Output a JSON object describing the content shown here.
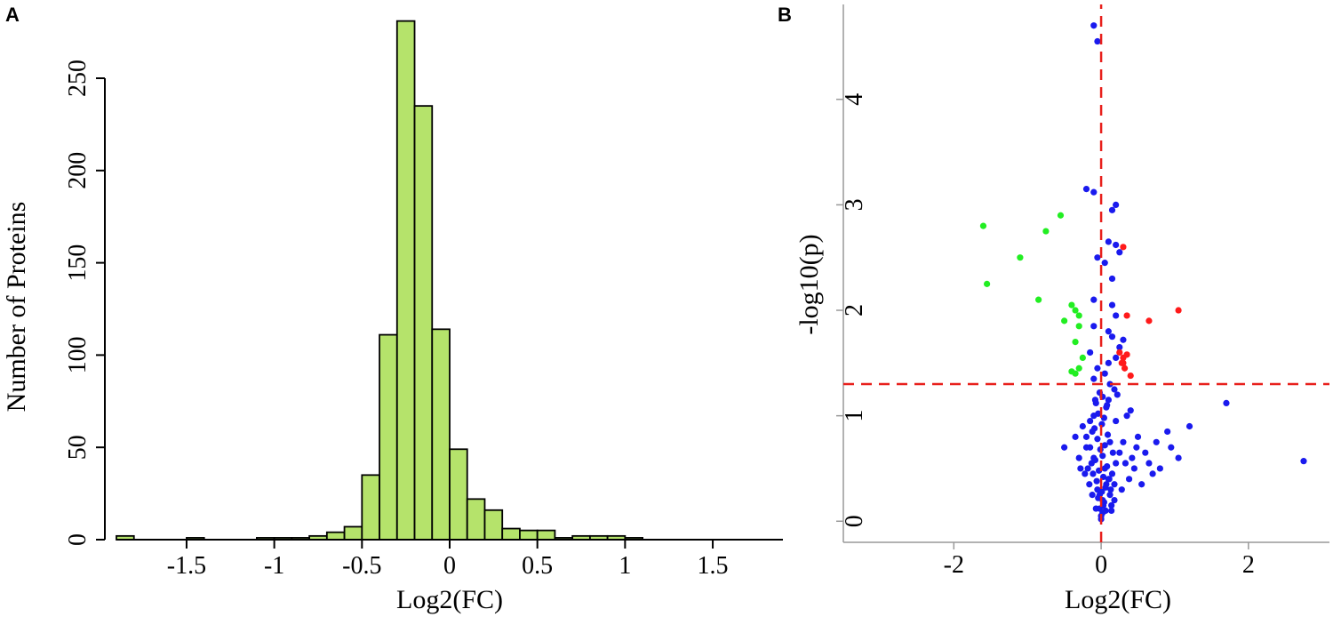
{
  "panels": {
    "a_label": "A",
    "b_label": "B"
  },
  "chart_data": [
    {
      "type": "bar",
      "panel": "A",
      "xlabel": "Log2(FC)",
      "ylabel": "Number of Proteins",
      "bin_width": 0.1,
      "bin_starts": [
        -1.9,
        -1.8,
        -1.7,
        -1.6,
        -1.5,
        -1.4,
        -1.3,
        -1.2,
        -1.1,
        -1.0,
        -0.9,
        -0.8,
        -0.7,
        -0.6,
        -0.5,
        -0.4,
        -0.3,
        -0.2,
        -0.1,
        0.0,
        0.1,
        0.2,
        0.3,
        0.4,
        0.5,
        0.6,
        0.7,
        0.8,
        0.9,
        1.0,
        1.1,
        1.2,
        1.3,
        1.4,
        1.5,
        1.6,
        1.7,
        1.8
      ],
      "values": [
        2,
        0,
        0,
        0,
        1,
        0,
        0,
        0,
        1,
        1,
        1,
        2,
        4,
        7,
        35,
        111,
        281,
        235,
        114,
        49,
        22,
        16,
        6,
        5,
        5,
        1,
        2,
        2,
        2,
        1,
        0,
        0,
        0,
        0,
        0,
        0,
        0,
        0
      ],
      "xlim": [
        -1.9,
        1.9
      ],
      "ylim": [
        0,
        250
      ],
      "xticks": [
        -1.5,
        -1,
        -0.5,
        0,
        0.5,
        1,
        1.5
      ],
      "xtick_labels": [
        "-1.5",
        "-1",
        "-0.5",
        "0",
        "0.5",
        "1",
        "1.5"
      ],
      "yticks": [
        0,
        50,
        100,
        150,
        200,
        250
      ],
      "ytick_labels": [
        "0",
        "50",
        "100",
        "150",
        "200",
        "250"
      ],
      "bar_color": "#b5e36b"
    },
    {
      "type": "scatter",
      "panel": "B",
      "xlabel": "Log2(FC)",
      "ylabel": "-log10(p)",
      "xlim": [
        -3.5,
        3.1
      ],
      "ylim": [
        -0.2,
        4.9
      ],
      "xticks": [
        -2,
        0,
        2
      ],
      "xtick_labels": [
        "-2",
        "0",
        "2"
      ],
      "yticks": [
        0,
        1,
        2,
        3,
        4
      ],
      "ytick_labels": [
        "0",
        "1",
        "2",
        "3",
        "4"
      ],
      "threshold_x": 0,
      "threshold_y": 1.3,
      "colors": {
        "up": "#ff1a1a",
        "down": "#22ee22",
        "ns": "#1a1aee",
        "threshold": "#e8201c"
      },
      "series": [
        {
          "color_key": "down",
          "x": [
            -1.6,
            -1.1,
            -1.55,
            -0.55,
            -0.75,
            -0.85,
            -0.4,
            -0.35,
            -0.3,
            -0.5,
            -0.3,
            -0.35,
            -0.25,
            -0.3,
            -0.4,
            -0.35
          ],
          "y": [
            2.8,
            2.5,
            2.25,
            2.9,
            2.75,
            2.1,
            2.05,
            2.0,
            1.95,
            1.9,
            1.85,
            1.7,
            1.55,
            1.45,
            1.42,
            1.4
          ]
        },
        {
          "color_key": "up",
          "x": [
            0.3,
            0.35,
            0.65,
            1.05,
            0.25,
            0.3,
            0.28,
            0.32,
            0.4,
            0.3,
            0.35
          ],
          "y": [
            2.6,
            1.95,
            1.9,
            2.0,
            1.6,
            1.55,
            1.5,
            1.45,
            1.38,
            1.5,
            1.58
          ]
        },
        {
          "color_key": "ns",
          "x": [
            -0.1,
            -0.05,
            -0.2,
            -0.1,
            0.2,
            0.15,
            0.1,
            0.2,
            0.25,
            -0.05,
            0.05,
            0.15,
            -0.1,
            0.15,
            0.2,
            -0.1,
            0.1,
            0.15,
            0.3,
            0.25,
            -0.15,
            0.2,
            0.1,
            -0.05,
            0.05,
            -0.1,
            0.12,
            0.18,
            0.22,
            -0.08,
            0.08,
            1.7,
            2.75,
            1.2,
            0.75,
            0.9,
            1.05,
            0.95,
            -0.5,
            -0.15,
            0.5,
            0.6,
            0.65,
            0.45,
            0.4,
            0.35,
            -0.25,
            -0.2,
            -0.15,
            -0.1,
            0.05,
            0.1,
            0.15,
            0.2,
            0.25,
            0.3,
            -0.3,
            0.55,
            0.7,
            0.8,
            -0.05,
            0.02,
            0.06,
            -0.12,
            0.14,
            0.18,
            0.28,
            -0.22,
            0.33,
            0.38,
            0.42,
            0.48,
            -0.35,
            -0.28,
            0.0,
            0.03,
            -0.02,
            0.07,
            0.12,
            -0.07
          ],
          "y": [
            4.7,
            4.55,
            3.15,
            3.12,
            3.0,
            2.95,
            2.65,
            2.62,
            2.55,
            2.5,
            2.45,
            2.3,
            2.1,
            2.05,
            1.95,
            1.85,
            1.8,
            1.75,
            1.72,
            1.65,
            1.6,
            1.55,
            1.5,
            1.45,
            1.4,
            1.35,
            1.3,
            1.25,
            1.2,
            1.15,
            1.1,
            1.12,
            0.57,
            0.9,
            0.75,
            0.85,
            0.6,
            0.7,
            0.7,
            0.95,
            0.8,
            0.65,
            0.55,
            0.5,
            1.05,
            1.0,
            0.9,
            0.8,
            0.7,
            0.6,
            0.5,
            0.4,
            0.45,
            0.55,
            0.65,
            0.75,
            0.6,
            0.35,
            0.45,
            0.5,
            0.3,
            0.2,
            0.1,
            0.25,
            0.15,
            0.35,
            0.3,
            0.45,
            0.55,
            0.4,
            0.6,
            0.7,
            0.8,
            0.5,
            0.05,
            0.15,
            0.25,
            0.35,
            0.25,
            0.12
          ]
        }
      ]
    }
  ]
}
